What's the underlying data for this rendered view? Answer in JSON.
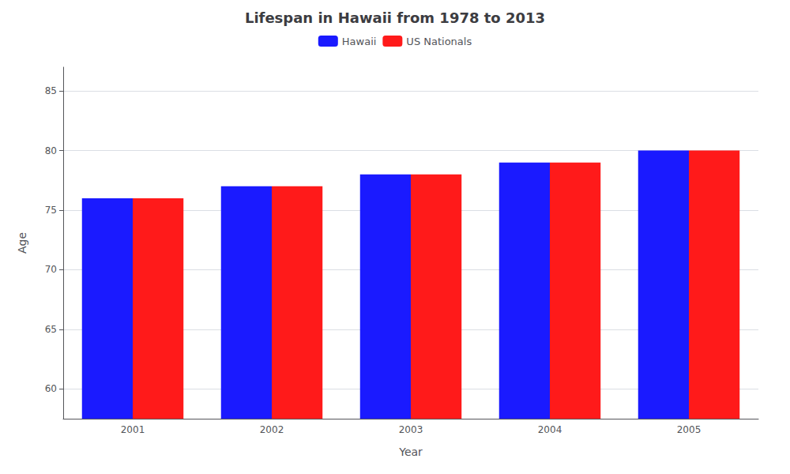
{
  "chart_data": {
    "type": "bar",
    "title": "Lifespan in Hawaii from 1978 to 2013",
    "x_label": "Year",
    "y_label": "Age",
    "categories": [
      2001,
      2002,
      2003,
      2004,
      2005
    ],
    "series": [
      {
        "name": "Hawaii",
        "color": "#1a1aff",
        "values": [
          76,
          77,
          78,
          79,
          80
        ]
      },
      {
        "name": "US Nationals",
        "color": "#ff1a1a",
        "values": [
          76,
          77,
          78,
          79,
          80
        ]
      }
    ],
    "ylim": [
      57.5,
      87
    ],
    "yticks": [
      60,
      65,
      70,
      75,
      80,
      85
    ],
    "grid": true,
    "legend": "top"
  }
}
